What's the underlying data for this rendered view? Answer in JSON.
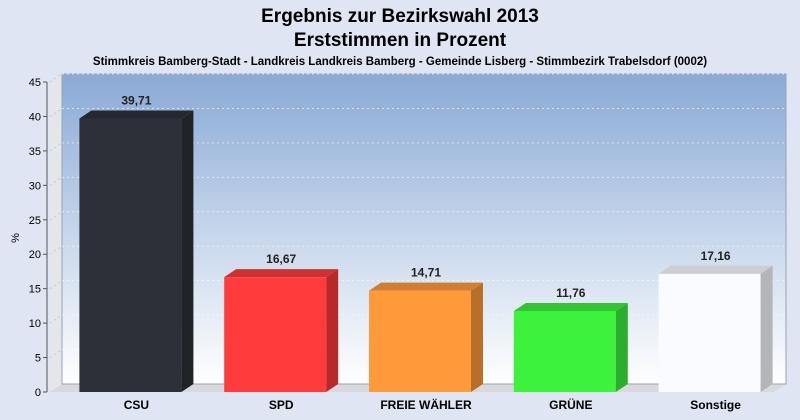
{
  "chart_data": {
    "type": "bar",
    "title": "Ergebnis zur Bezirkswahl 2013",
    "subtitle": "Erststimmen in Prozent",
    "subsubtitle": "Stimmkreis Bamberg-Stadt - Landkreis Landkreis Bamberg - Gemeinde Lisberg - Stimmbezirk Trabelsdorf (0002)",
    "ylabel": "%",
    "ylim": [
      0,
      45
    ],
    "yticks": [
      0,
      5,
      10,
      15,
      20,
      25,
      30,
      35,
      40,
      45
    ],
    "grid": true,
    "categories": [
      "CSU",
      "SPD",
      "FREIE WÄHLER",
      "GRÜNE",
      "Sonstige"
    ],
    "values": [
      39.71,
      16.67,
      14.71,
      11.76,
      17.16
    ],
    "value_labels": [
      "39,71",
      "16,67",
      "14,71",
      "11,76",
      "17,16"
    ],
    "colors": [
      "#2d3038",
      "#ff3b3b",
      "#ff9a3a",
      "#3cf23c",
      "#fafbff"
    ]
  }
}
